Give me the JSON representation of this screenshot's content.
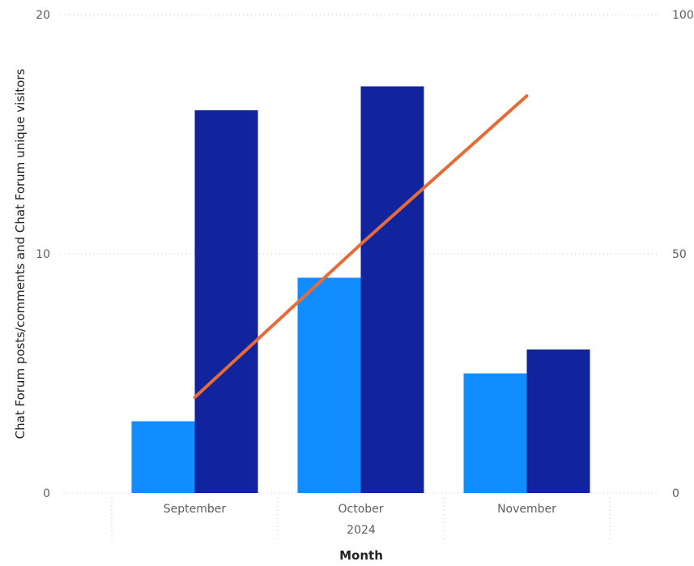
{
  "chart_data": {
    "type": "bar",
    "categories": [
      "September",
      "October",
      "November"
    ],
    "x_group_label": "2024",
    "xlabel": "Month",
    "ylabel": "Chat Forum posts/comments and Chat Forum unique visitors",
    "ylim": [
      0,
      20
    ],
    "y_ticks": [
      "0",
      "10",
      "20"
    ],
    "y2lim": [
      0,
      100
    ],
    "y2_ticks": [
      "0",
      "50",
      "100"
    ],
    "grid": true,
    "series": [
      {
        "values": [
          3,
          9,
          5
        ],
        "color": "#118DFF",
        "axis": "left",
        "kind": "bar"
      },
      {
        "values": [
          16,
          17,
          6
        ],
        "color": "#12239E",
        "axis": "left",
        "kind": "bar"
      },
      {
        "values": [
          20,
          52,
          83
        ],
        "color": "#E66C37",
        "axis": "right",
        "kind": "line"
      }
    ]
  }
}
